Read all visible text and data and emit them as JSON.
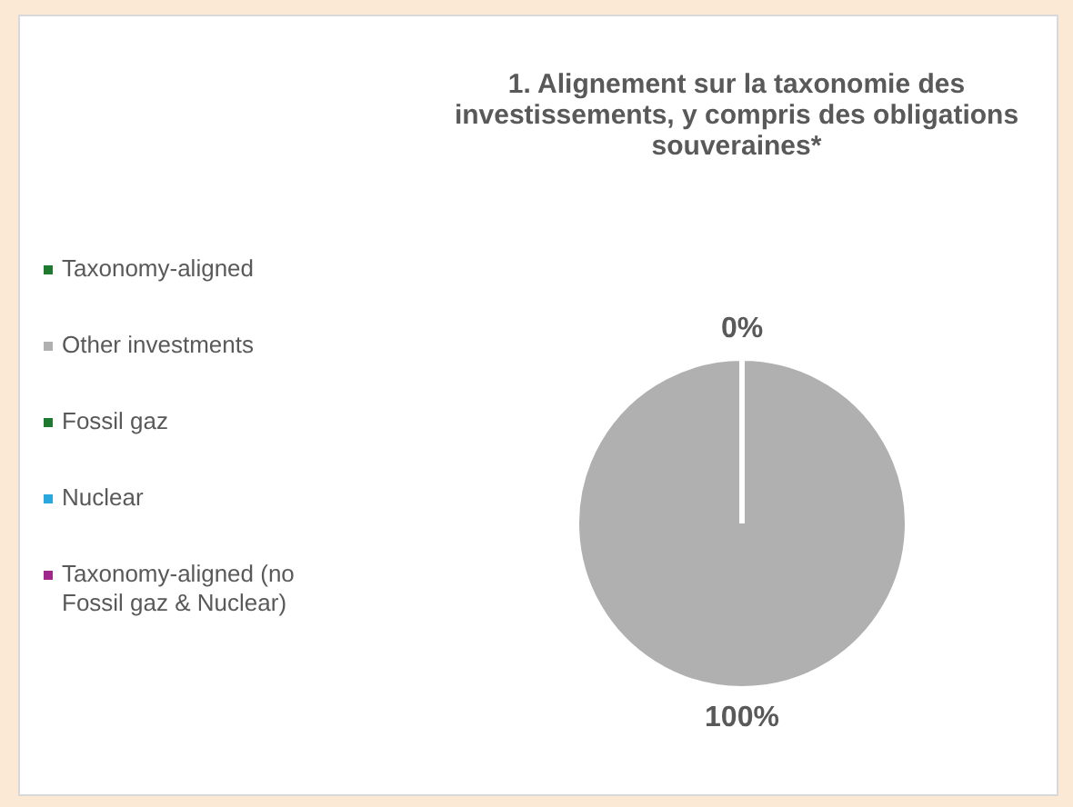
{
  "chart_data": {
    "type": "pie",
    "title": "1. Alignement sur la taxonomie des investissements, y compris des obligations souveraines*",
    "categories": [
      "Taxonomy-aligned",
      "Other investments",
      "Fossil gaz",
      "Nuclear",
      "Taxonomy-aligned (no Fossil gaz & Nuclear)"
    ],
    "values": [
      0,
      100,
      0,
      0,
      0
    ],
    "colors": [
      "#1e7a2e",
      "#b0b0b0",
      "#1e7a2e",
      "#29a8e0",
      "#a0288c"
    ],
    "value_labels": [
      "0%",
      "100%",
      null,
      null,
      null
    ],
    "legend": "left"
  }
}
